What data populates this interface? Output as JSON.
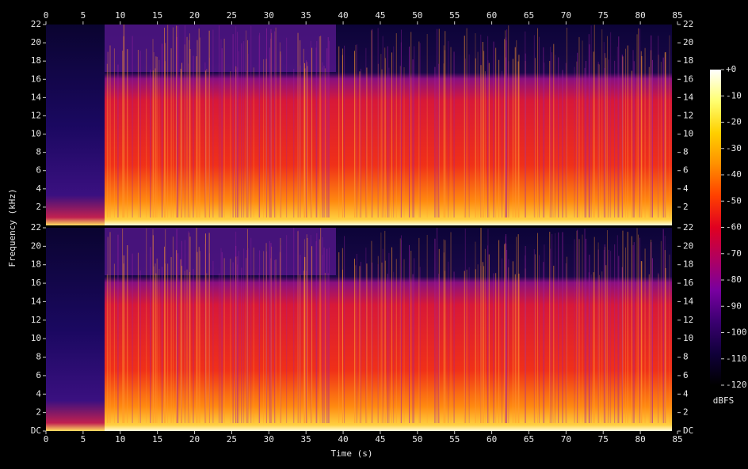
{
  "chart_data": {
    "type": "spectrogram",
    "xlabel": "Time (s)",
    "ylabel": "Frequency (kHz)",
    "xlim": [
      0,
      85
    ],
    "xticks": [
      0,
      5,
      10,
      15,
      20,
      25,
      30,
      35,
      40,
      45,
      50,
      55,
      60,
      65,
      70,
      75,
      80,
      85
    ],
    "panels": [
      {
        "ylim": [
          0,
          22
        ],
        "yticks": [
          2,
          4,
          6,
          8,
          10,
          12,
          14,
          16,
          18,
          20,
          22
        ]
      },
      {
        "ylim": [
          0,
          22
        ],
        "yticks": [
          {
            "value": 0,
            "label": "DC"
          },
          2,
          4,
          6,
          8,
          10,
          12,
          14,
          16,
          18,
          20,
          22
        ]
      }
    ],
    "colorbar": {
      "label": "dBFS",
      "lim": [
        -120,
        0
      ],
      "ticks": [
        {
          "value": 0,
          "label": "+0"
        },
        -10,
        -20,
        -30,
        -40,
        -50,
        -60,
        -70,
        -80,
        -90,
        -100,
        -110,
        -120
      ],
      "colors": [
        "#ffffff",
        "#ffff70",
        "#ffd000",
        "#ff9000",
        "#ff4000",
        "#e00020",
        "#b00060",
        "#7800a0",
        "#3a0070",
        "#10003a",
        "#000000"
      ]
    }
  }
}
